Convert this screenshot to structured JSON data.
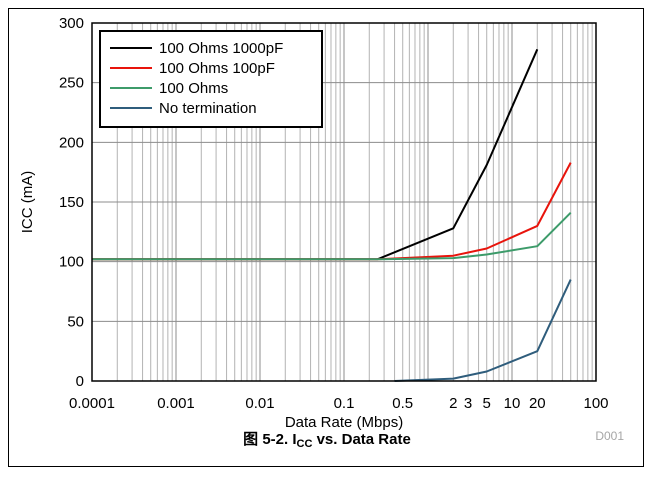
{
  "chart_data": {
    "type": "line",
    "xlabel": "Data Rate (Mbps)",
    "ylabel": "ICC (mA)",
    "xscale": "log",
    "xlim": [
      0.0001,
      100
    ],
    "ylim": [
      0,
      300
    ],
    "grid": true,
    "legend_position": "top-left",
    "x_ticks": [
      "0.0001",
      "0.001",
      "0.01",
      "0.1",
      "0.5",
      "2",
      "3",
      "5",
      "10",
      "20",
      "100"
    ],
    "x_tick_values": [
      0.0001,
      0.001,
      0.01,
      0.1,
      0.5,
      2,
      3,
      5,
      10,
      20,
      100
    ],
    "y_ticks": [
      0,
      50,
      100,
      150,
      200,
      250,
      300
    ],
    "series": [
      {
        "name": "100 Ohms 1000pF",
        "color": "#000000",
        "x": [
          0.0001,
          0.25,
          2,
          5,
          20
        ],
        "y": [
          102,
          102,
          128,
          181,
          278
        ]
      },
      {
        "name": "100 Ohms 100pF",
        "color": "#e8140c",
        "x": [
          0.0001,
          0.25,
          2,
          5,
          20,
          50
        ],
        "y": [
          102,
          102,
          105,
          111,
          130,
          183
        ]
      },
      {
        "name": "100 Ohms",
        "color": "#3d9b6a",
        "x": [
          0.0001,
          0.25,
          2,
          5,
          20,
          50
        ],
        "y": [
          102,
          102,
          103,
          106,
          113,
          141
        ]
      },
      {
        "name": "No termination",
        "color": "#2f5d7c",
        "x": [
          0.4,
          2,
          5,
          20,
          50
        ],
        "y": [
          0,
          2,
          8,
          25,
          85
        ]
      }
    ]
  },
  "figure_id": "D001",
  "caption": {
    "prefix": "图 5-2. I",
    "subscript": "CC",
    "suffix": " vs. Data Rate"
  }
}
